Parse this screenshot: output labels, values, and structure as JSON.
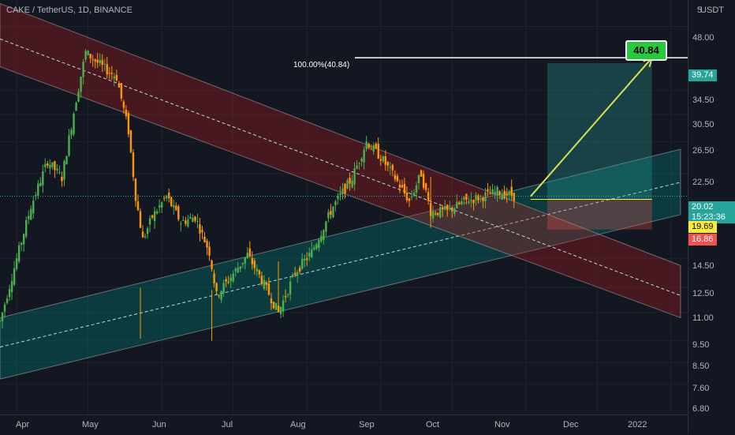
{
  "header": {
    "title": "CAKE / TetherUS, 1D, BINANCE",
    "currency": "USDT"
  },
  "yaxis": {
    "ticks": [
      "5",
      "48.00",
      "39.74",
      "34.50",
      "30.50",
      "26.50",
      "22.50",
      "20.02",
      "15:23:36",
      "19.69",
      "16.86",
      "14.50",
      "12.50",
      "11.00",
      "9.50",
      "8.50",
      "7.60",
      "6.80"
    ]
  },
  "xaxis": {
    "ticks": [
      "Apr",
      "May",
      "Jun",
      "Jul",
      "Aug",
      "Sep",
      "Oct",
      "Nov",
      "Dec",
      "2022"
    ]
  },
  "badges": {
    "target": {
      "value": "39.74",
      "color": "#26a69a"
    },
    "current": {
      "value": "20.02",
      "timer": "15:23:36",
      "color": "#26a69a"
    },
    "entry": {
      "value": "19.69",
      "color": "#ffeb3b"
    },
    "stop": {
      "value": "16.86",
      "color": "#ef5350"
    }
  },
  "annotations": {
    "fib_label": "100.00%(40.84)",
    "target_box": "40.84"
  },
  "colors": {
    "up": "#26a69a",
    "down": "#ef5350",
    "candle_up": "#4caf50",
    "candle_down": "#ff9800",
    "down_channel": "#b71c1c",
    "up_channel": "#00897b",
    "arrow": "#d4e157"
  },
  "chart_data": {
    "type": "candlestick",
    "title": "CAKE / TetherUS, 1D, BINANCE",
    "yscale": "log",
    "ylim": [
      6.5,
      55
    ],
    "x_range": [
      "2021-03-25",
      "2022-01-08"
    ],
    "current_price": 20.02,
    "entry": 19.69,
    "stop_loss": 16.86,
    "take_profit": 39.74,
    "fib_target": 40.84,
    "price_path": [
      [
        "2021-03-25",
        10.5
      ],
      [
        "2021-04-01",
        14.5
      ],
      [
        "2021-04-07",
        19.0
      ],
      [
        "2021-04-14",
        24.0
      ],
      [
        "2021-04-20",
        22.0
      ],
      [
        "2021-04-26",
        33.0
      ],
      [
        "2021-04-30",
        42.0
      ],
      [
        "2021-05-07",
        39.0
      ],
      [
        "2021-05-13",
        37.0
      ],
      [
        "2021-05-18",
        28.0
      ],
      [
        "2021-05-21",
        20.0
      ],
      [
        "2021-05-24",
        16.0
      ],
      [
        "2021-05-28",
        18.0
      ],
      [
        "2021-06-03",
        20.0
      ],
      [
        "2021-06-09",
        17.5
      ],
      [
        "2021-06-15",
        18.0
      ],
      [
        "2021-06-21",
        15.0
      ],
      [
        "2021-06-24",
        12.0
      ],
      [
        "2021-06-29",
        13.0
      ],
      [
        "2021-07-07",
        14.8
      ],
      [
        "2021-07-13",
        13.0
      ],
      [
        "2021-07-20",
        11.0
      ],
      [
        "2021-07-27",
        13.5
      ],
      [
        "2021-08-03",
        15.0
      ],
      [
        "2021-08-12",
        19.0
      ],
      [
        "2021-08-20",
        22.0
      ],
      [
        "2021-08-26",
        26.5
      ],
      [
        "2021-09-01",
        24.5
      ],
      [
        "2021-09-07",
        22.0
      ],
      [
        "2021-09-13",
        19.5
      ],
      [
        "2021-09-18",
        22.5
      ],
      [
        "2021-09-22",
        18.5
      ],
      [
        "2021-09-29",
        18.5
      ],
      [
        "2021-10-06",
        19.5
      ],
      [
        "2021-10-14",
        20.0
      ],
      [
        "2021-10-20",
        20.5
      ],
      [
        "2021-10-27",
        20.02
      ]
    ],
    "lows": [
      [
        "2021-05-23",
        9.6
      ],
      [
        "2021-06-22",
        9.5
      ],
      [
        "2021-07-20",
        11.0
      ],
      [
        "2021-09-22",
        17.0
      ]
    ],
    "descending_channel": {
      "upper": [
        [
          "2021-03-25",
          54.0
        ],
        [
          "2022-01-05",
          14.0
        ]
      ],
      "mid": [
        [
          "2021-03-25",
          45.0
        ],
        [
          "2022-01-05",
          12.0
        ]
      ],
      "lower": [
        [
          "2021-03-25",
          39.0
        ],
        [
          "2022-01-05",
          10.7
        ]
      ]
    },
    "ascending_channel": {
      "upper": [
        [
          "2021-03-25",
          10.7
        ],
        [
          "2022-01-05",
          25.5
        ]
      ],
      "mid": [
        [
          "2021-03-25",
          9.2
        ],
        [
          "2022-01-05",
          21.5
        ]
      ],
      "lower": [
        [
          "2021-03-25",
          7.8
        ],
        [
          "2022-01-05",
          18.2
        ]
      ]
    },
    "position": {
      "start": "2021-11-10",
      "end": "2021-12-24"
    },
    "arrow": [
      [
        "2021-11-03",
        20.0
      ],
      [
        "2021-12-24",
        40.84
      ]
    ]
  }
}
